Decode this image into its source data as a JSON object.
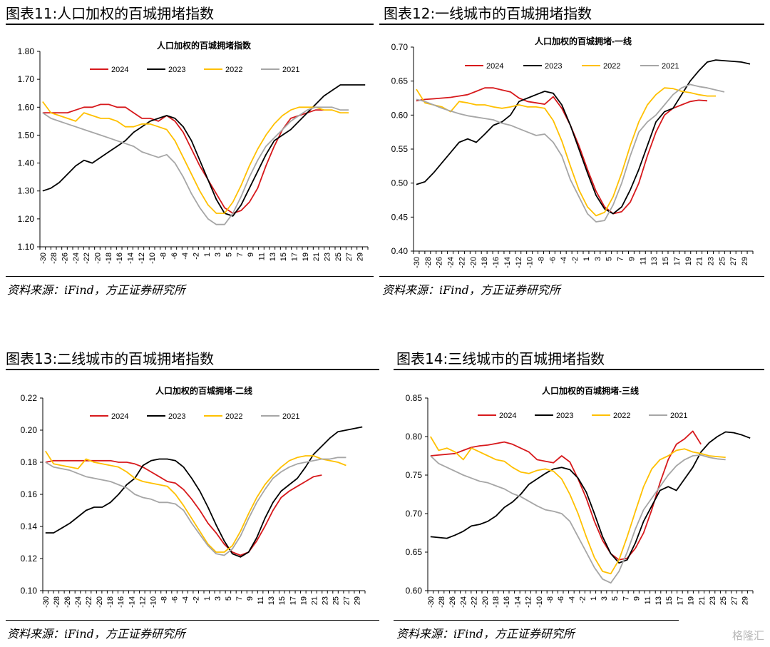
{
  "source_text": "资料来源：iFind，方正证券研究所",
  "watermark": "格隆汇",
  "x_ticks": [
    "-30",
    "-28",
    "-26",
    "-24",
    "-22",
    "-20",
    "-18",
    "-16",
    "-14",
    "-12",
    "-10",
    "-8",
    "-6",
    "-4",
    "-2",
    "1",
    "3",
    "5",
    "7",
    "9",
    "11",
    "13",
    "15",
    "17",
    "19",
    "21",
    "23",
    "25",
    "27",
    "29"
  ],
  "colors": {
    "2024": "#d7191c",
    "2023": "#000000",
    "2022": "#ffc000",
    "2021": "#a6a6a6"
  },
  "chart_data": [
    {
      "figure_title": "图表11:人口加权的百城拥堵指数",
      "type": "line",
      "title": "人口加权的百城拥堵指数",
      "ylim": [
        1.1,
        1.8
      ],
      "yticks": [
        "1.10",
        "1.20",
        "1.30",
        "1.40",
        "1.50",
        "1.60",
        "1.70",
        "1.80"
      ],
      "series": [
        {
          "name": "2024",
          "color": "#d7191c",
          "values": [
            1.58,
            1.58,
            1.58,
            1.58,
            1.59,
            1.6,
            1.6,
            1.61,
            1.61,
            1.6,
            1.6,
            1.58,
            1.56,
            1.56,
            1.55,
            1.57,
            1.55,
            1.51,
            1.45,
            1.39,
            1.34,
            1.29,
            1.24,
            1.22,
            1.23,
            1.26,
            1.31,
            1.39,
            1.46,
            1.52,
            1.56,
            1.57,
            1.58,
            1.59,
            1.59
          ]
        },
        {
          "name": "2023",
          "color": "#000000",
          "values": [
            1.3,
            1.31,
            1.33,
            1.36,
            1.39,
            1.41,
            1.4,
            1.42,
            1.44,
            1.46,
            1.48,
            1.51,
            1.53,
            1.55,
            1.56,
            1.57,
            1.56,
            1.53,
            1.48,
            1.41,
            1.34,
            1.27,
            1.22,
            1.21,
            1.25,
            1.31,
            1.37,
            1.43,
            1.48,
            1.5,
            1.52,
            1.55,
            1.58,
            1.61,
            1.64,
            1.66,
            1.68,
            1.68,
            1.68,
            1.68
          ]
        },
        {
          "name": "2022",
          "color": "#ffc000",
          "values": [
            1.62,
            1.58,
            1.57,
            1.56,
            1.55,
            1.58,
            1.57,
            1.56,
            1.56,
            1.55,
            1.53,
            1.53,
            1.54,
            1.54,
            1.53,
            1.52,
            1.48,
            1.42,
            1.36,
            1.3,
            1.25,
            1.22,
            1.22,
            1.26,
            1.32,
            1.39,
            1.45,
            1.5,
            1.54,
            1.57,
            1.59,
            1.6,
            1.6,
            1.6,
            1.59,
            1.59,
            1.58,
            1.58
          ]
        },
        {
          "name": "2021",
          "color": "#a6a6a6",
          "values": [
            1.58,
            1.56,
            1.55,
            1.54,
            1.53,
            1.52,
            1.51,
            1.5,
            1.49,
            1.48,
            1.47,
            1.46,
            1.44,
            1.43,
            1.42,
            1.43,
            1.4,
            1.35,
            1.29,
            1.24,
            1.2,
            1.18,
            1.18,
            1.22,
            1.28,
            1.35,
            1.41,
            1.46,
            1.49,
            1.52,
            1.55,
            1.57,
            1.59,
            1.6,
            1.6,
            1.6,
            1.59,
            1.59
          ]
        }
      ]
    },
    {
      "figure_title": "图表12:一线城市的百城拥堵指数",
      "type": "line",
      "title": "人口加权的百城拥堵-一线",
      "ylim": [
        0.4,
        0.7
      ],
      "yticks": [
        "0.40",
        "0.45",
        "0.50",
        "0.55",
        "0.60",
        "0.65",
        "0.70"
      ],
      "series": [
        {
          "name": "2024",
          "color": "#d7191c",
          "values": [
            0.621,
            0.623,
            0.624,
            0.625,
            0.626,
            0.628,
            0.63,
            0.635,
            0.64,
            0.64,
            0.637,
            0.634,
            0.625,
            0.62,
            0.618,
            0.616,
            0.627,
            0.61,
            0.585,
            0.555,
            0.52,
            0.488,
            0.465,
            0.455,
            0.458,
            0.472,
            0.5,
            0.54,
            0.575,
            0.6,
            0.61,
            0.615,
            0.62,
            0.622,
            0.621
          ]
        },
        {
          "name": "2023",
          "color": "#000000",
          "values": [
            0.498,
            0.502,
            0.515,
            0.53,
            0.545,
            0.56,
            0.565,
            0.56,
            0.572,
            0.585,
            0.59,
            0.6,
            0.62,
            0.625,
            0.63,
            0.635,
            0.632,
            0.615,
            0.585,
            0.55,
            0.515,
            0.482,
            0.462,
            0.455,
            0.465,
            0.49,
            0.52,
            0.555,
            0.59,
            0.605,
            0.61,
            0.63,
            0.65,
            0.665,
            0.678,
            0.681,
            0.68,
            0.679,
            0.678,
            0.675
          ]
        },
        {
          "name": "2022",
          "color": "#ffc000",
          "values": [
            0.638,
            0.618,
            0.615,
            0.612,
            0.605,
            0.62,
            0.618,
            0.615,
            0.615,
            0.612,
            0.61,
            0.612,
            0.615,
            0.612,
            0.612,
            0.61,
            0.592,
            0.562,
            0.525,
            0.49,
            0.465,
            0.452,
            0.457,
            0.48,
            0.515,
            0.555,
            0.59,
            0.615,
            0.63,
            0.64,
            0.639,
            0.635,
            0.633,
            0.63,
            0.628,
            0.628
          ]
        },
        {
          "name": "2021",
          "color": "#a6a6a6",
          "values": [
            0.623,
            0.62,
            0.615,
            0.61,
            0.606,
            0.602,
            0.599,
            0.597,
            0.595,
            0.593,
            0.588,
            0.585,
            0.58,
            0.575,
            0.57,
            0.572,
            0.56,
            0.54,
            0.505,
            0.48,
            0.455,
            0.443,
            0.445,
            0.468,
            0.5,
            0.54,
            0.575,
            0.59,
            0.6,
            0.615,
            0.63,
            0.64,
            0.645,
            0.642,
            0.64,
            0.637,
            0.634
          ]
        }
      ]
    },
    {
      "figure_title": "图表13:二线城市的百城拥堵指数",
      "type": "line",
      "title": "人口加权的百城拥堵-二线",
      "ylim": [
        0.1,
        0.22
      ],
      "yticks": [
        "0.10",
        "0.12",
        "0.14",
        "0.16",
        "0.18",
        "0.20",
        "0.22"
      ],
      "series": [
        {
          "name": "2024",
          "color": "#d7191c",
          "values": [
            0.18,
            0.181,
            0.181,
            0.181,
            0.181,
            0.181,
            0.181,
            0.181,
            0.181,
            0.18,
            0.18,
            0.179,
            0.177,
            0.174,
            0.171,
            0.168,
            0.167,
            0.163,
            0.157,
            0.15,
            0.142,
            0.136,
            0.129,
            0.124,
            0.122,
            0.124,
            0.131,
            0.14,
            0.15,
            0.158,
            0.162,
            0.165,
            0.168,
            0.171,
            0.172
          ]
        },
        {
          "name": "2023",
          "color": "#000000",
          "values": [
            0.136,
            0.136,
            0.139,
            0.142,
            0.146,
            0.15,
            0.152,
            0.152,
            0.155,
            0.16,
            0.166,
            0.17,
            0.178,
            0.181,
            0.182,
            0.182,
            0.181,
            0.177,
            0.17,
            0.162,
            0.152,
            0.141,
            0.131,
            0.123,
            0.121,
            0.124,
            0.133,
            0.145,
            0.155,
            0.162,
            0.166,
            0.17,
            0.177,
            0.185,
            0.19,
            0.195,
            0.199,
            0.2,
            0.201,
            0.202
          ]
        },
        {
          "name": "2022",
          "color": "#ffc000",
          "values": [
            0.187,
            0.179,
            0.178,
            0.177,
            0.176,
            0.182,
            0.18,
            0.179,
            0.178,
            0.177,
            0.174,
            0.17,
            0.168,
            0.167,
            0.166,
            0.165,
            0.16,
            0.153,
            0.145,
            0.137,
            0.129,
            0.124,
            0.124,
            0.128,
            0.137,
            0.148,
            0.158,
            0.166,
            0.172,
            0.177,
            0.181,
            0.183,
            0.184,
            0.184,
            0.182,
            0.181,
            0.18,
            0.178
          ]
        },
        {
          "name": "2021",
          "color": "#a6a6a6",
          "values": [
            0.18,
            0.177,
            0.176,
            0.175,
            0.173,
            0.171,
            0.17,
            0.169,
            0.168,
            0.166,
            0.164,
            0.16,
            0.158,
            0.157,
            0.155,
            0.155,
            0.154,
            0.15,
            0.142,
            0.135,
            0.128,
            0.123,
            0.122,
            0.126,
            0.134,
            0.145,
            0.155,
            0.163,
            0.17,
            0.174,
            0.177,
            0.179,
            0.18,
            0.181,
            0.182,
            0.182,
            0.183,
            0.183
          ]
        }
      ]
    },
    {
      "figure_title": "图表14:三线城市的百城拥堵指数",
      "type": "line",
      "title": "人口加权的百城拥堵-三线",
      "ylim": [
        0.6,
        0.85
      ],
      "yticks": [
        "0.60",
        "0.65",
        "0.70",
        "0.75",
        "0.80",
        "0.85"
      ],
      "series": [
        {
          "name": "2024",
          "color": "#d7191c",
          "values": [
            0.775,
            0.776,
            0.777,
            0.778,
            0.782,
            0.786,
            0.788,
            0.789,
            0.791,
            0.793,
            0.79,
            0.785,
            0.78,
            0.77,
            0.768,
            0.766,
            0.775,
            0.767,
            0.745,
            0.72,
            0.69,
            0.665,
            0.648,
            0.64,
            0.642,
            0.655,
            0.675,
            0.705,
            0.74,
            0.77,
            0.79,
            0.797,
            0.807,
            0.79
          ]
        },
        {
          "name": "2023",
          "color": "#000000",
          "values": [
            0.67,
            0.669,
            0.668,
            0.672,
            0.677,
            0.684,
            0.686,
            0.69,
            0.697,
            0.708,
            0.715,
            0.725,
            0.738,
            0.745,
            0.752,
            0.758,
            0.76,
            0.757,
            0.746,
            0.728,
            0.7,
            0.67,
            0.648,
            0.636,
            0.64,
            0.662,
            0.69,
            0.71,
            0.73,
            0.735,
            0.73,
            0.745,
            0.76,
            0.78,
            0.792,
            0.8,
            0.806,
            0.805,
            0.802,
            0.798
          ]
        },
        {
          "name": "2022",
          "color": "#ffc000",
          "values": [
            0.8,
            0.782,
            0.785,
            0.78,
            0.77,
            0.785,
            0.78,
            0.775,
            0.77,
            0.768,
            0.76,
            0.754,
            0.752,
            0.756,
            0.758,
            0.755,
            0.745,
            0.725,
            0.7,
            0.67,
            0.643,
            0.625,
            0.622,
            0.64,
            0.67,
            0.703,
            0.735,
            0.758,
            0.77,
            0.775,
            0.782,
            0.784,
            0.78,
            0.778,
            0.775,
            0.774,
            0.773
          ]
        },
        {
          "name": "2021",
          "color": "#a6a6a6",
          "values": [
            0.775,
            0.765,
            0.76,
            0.755,
            0.75,
            0.746,
            0.742,
            0.74,
            0.736,
            0.732,
            0.726,
            0.722,
            0.716,
            0.71,
            0.705,
            0.703,
            0.7,
            0.69,
            0.67,
            0.65,
            0.63,
            0.615,
            0.61,
            0.625,
            0.65,
            0.68,
            0.705,
            0.72,
            0.735,
            0.75,
            0.762,
            0.77,
            0.775,
            0.776,
            0.773,
            0.771,
            0.77
          ]
        }
      ]
    }
  ]
}
